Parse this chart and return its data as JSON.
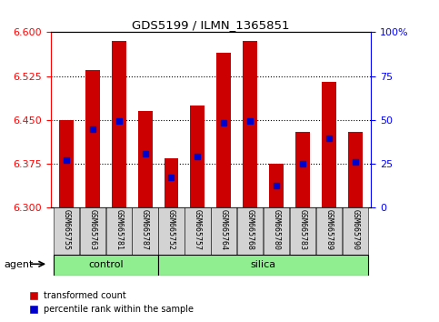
{
  "title": "GDS5199 / ILMN_1365851",
  "samples": [
    "GSM665755",
    "GSM665763",
    "GSM665781",
    "GSM665787",
    "GSM665752",
    "GSM665757",
    "GSM665764",
    "GSM665768",
    "GSM665780",
    "GSM665783",
    "GSM665789",
    "GSM665790"
  ],
  "groups": {
    "control": [
      0,
      1,
      2,
      3
    ],
    "silica": [
      4,
      5,
      6,
      7,
      8,
      9,
      10,
      11
    ]
  },
  "bar_bottom": 6.3,
  "bar_tops": [
    6.45,
    6.535,
    6.585,
    6.465,
    6.385,
    6.475,
    6.565,
    6.585,
    6.375,
    6.43,
    6.515,
    6.43
  ],
  "percentile_values": [
    6.382,
    6.435,
    6.448,
    6.392,
    6.352,
    6.388,
    6.445,
    6.448,
    6.338,
    6.375,
    6.418,
    6.378
  ],
  "ylim": [
    6.3,
    6.6
  ],
  "yticks": [
    6.3,
    6.375,
    6.45,
    6.525,
    6.6
  ],
  "right_yticks": [
    0,
    25,
    50,
    75,
    100
  ],
  "grid_yticks": [
    6.375,
    6.45,
    6.525
  ],
  "bar_color": "#cc0000",
  "marker_color": "#0000cc",
  "group_color": "#90ee90",
  "background_color": "#ffffff",
  "bar_width": 0.55,
  "marker_size": 4
}
